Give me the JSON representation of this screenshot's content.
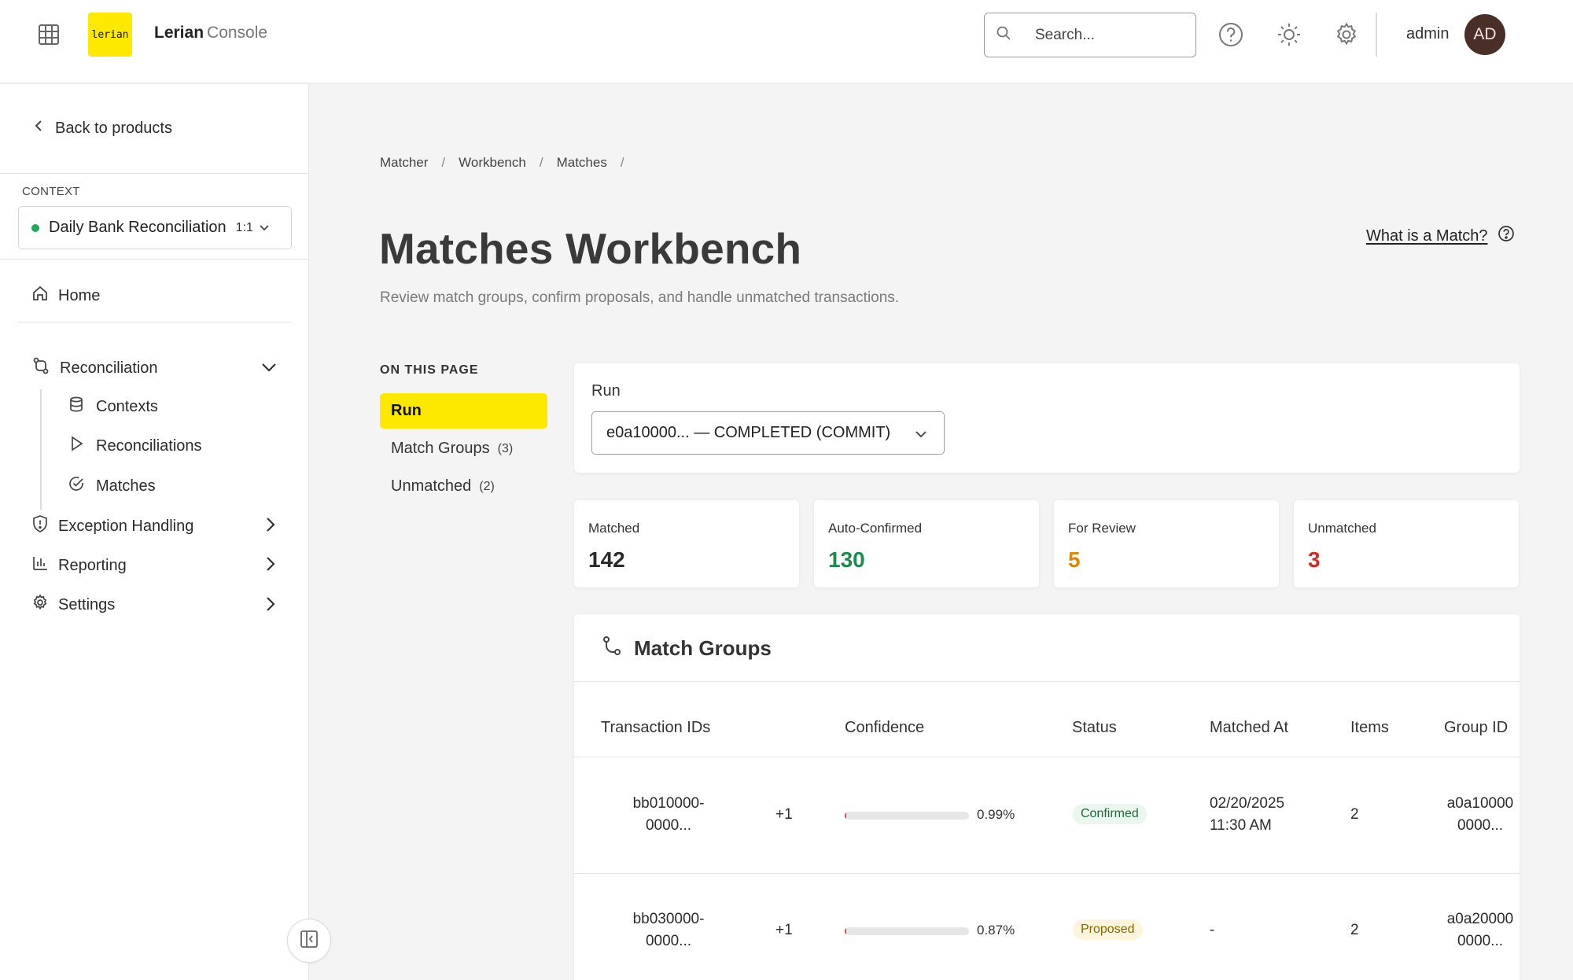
{
  "header": {
    "logo_text": "lerian",
    "brand_name": "Lerian",
    "brand_sub": "Console",
    "search_placeholder": "Search...",
    "username": "admin",
    "avatar_initials": "AD"
  },
  "sidebar": {
    "back_label": "Back to products",
    "context_label": "CONTEXT",
    "context_name": "Daily Bank Reconciliation",
    "context_ratio": "1:1",
    "context_status_color": "#1faa59",
    "home_label": "Home",
    "groups": [
      {
        "label": "Reconciliation",
        "icon": "git-compare-icon",
        "expanded": true,
        "items": [
          {
            "label": "Contexts",
            "icon": "database-icon"
          },
          {
            "label": "Reconciliations",
            "icon": "play-icon"
          },
          {
            "label": "Matches",
            "icon": "check-circle-icon"
          }
        ]
      },
      {
        "label": "Exception Handling",
        "icon": "shield-alert-icon",
        "expanded": false
      },
      {
        "label": "Reporting",
        "icon": "bar-chart-icon",
        "expanded": false
      },
      {
        "label": "Settings",
        "icon": "gear-icon",
        "expanded": false
      }
    ]
  },
  "breadcrumb": [
    "Matcher",
    "Workbench",
    "Matches"
  ],
  "page": {
    "title": "Matches Workbench",
    "subtitle": "Review match groups, confirm proposals, and handle unmatched transactions.",
    "help_link": "What is a Match?"
  },
  "on_this_page": {
    "title": "ON THIS PAGE",
    "items": [
      {
        "label": "Run",
        "count": "",
        "active": true
      },
      {
        "label": "Match Groups",
        "count": "(3)",
        "active": false
      },
      {
        "label": "Unmatched",
        "count": "(2)",
        "active": false
      }
    ]
  },
  "run": {
    "label": "Run",
    "selected": "e0a10000... — COMPLETED (COMMIT)"
  },
  "stats": [
    {
      "label": "Matched",
      "value": "142",
      "color": "#2b2b2b"
    },
    {
      "label": "Auto-Confirmed",
      "value": "130",
      "color": "#1e8a4c"
    },
    {
      "label": "For Review",
      "value": "5",
      "color": "#d98a0b"
    },
    {
      "label": "Unmatched",
      "value": "3",
      "color": "#d62828"
    }
  ],
  "match_groups": {
    "title": "Match Groups",
    "columns": [
      "Transaction IDs",
      "Confidence",
      "Status",
      "Matched At",
      "Items",
      "Group ID"
    ],
    "rows": [
      {
        "tx_line1": "bb010000-",
        "tx_line2": "0000...",
        "extra": "+1",
        "confidence": 0.0099,
        "confidence_label": "0.99%",
        "status": "Confirmed",
        "matched_line1": "02/20/2025",
        "matched_line2": "11:30 AM",
        "items": "2",
        "group_line1": "a0a10000",
        "group_line2": "0000..."
      },
      {
        "tx_line1": "bb030000-",
        "tx_line2": "0000...",
        "extra": "+1",
        "confidence": 0.0087,
        "confidence_label": "0.87%",
        "status": "Proposed",
        "matched_line1": "-",
        "matched_line2": "",
        "items": "2",
        "group_line1": "a0a20000",
        "group_line2": "0000..."
      }
    ]
  }
}
